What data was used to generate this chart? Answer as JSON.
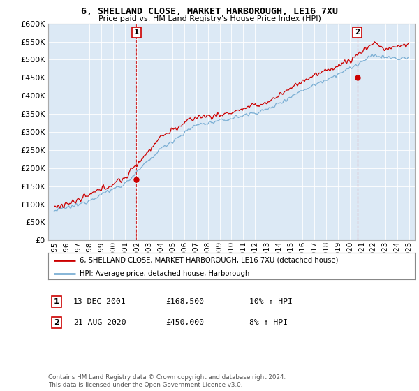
{
  "title": "6, SHELLAND CLOSE, MARKET HARBOROUGH, LE16 7XU",
  "subtitle": "Price paid vs. HM Land Registry's House Price Index (HPI)",
  "legend_line1": "6, SHELLAND CLOSE, MARKET HARBOROUGH, LE16 7XU (detached house)",
  "legend_line2": "HPI: Average price, detached house, Harborough",
  "annotation1_label": "1",
  "annotation1_date": "13-DEC-2001",
  "annotation1_price": "£168,500",
  "annotation1_hpi": "10% ↑ HPI",
  "annotation2_label": "2",
  "annotation2_date": "21-AUG-2020",
  "annotation2_price": "£450,000",
  "annotation2_hpi": "8% ↑ HPI",
  "footer": "Contains HM Land Registry data © Crown copyright and database right 2024.\nThis data is licensed under the Open Government Licence v3.0.",
  "red_color": "#cc0000",
  "blue_color": "#7bafd4",
  "plot_bg": "#dce9f5",
  "sale1_x": 2001.96,
  "sale1_y": 168500,
  "sale2_x": 2020.63,
  "sale2_y": 450000,
  "ylim": [
    0,
    600000
  ],
  "xlim": [
    1994.5,
    2025.5
  ],
  "yticks": [
    0,
    50000,
    100000,
    150000,
    200000,
    250000,
    300000,
    350000,
    400000,
    450000,
    500000,
    550000,
    600000
  ],
  "xticks": [
    1995,
    1996,
    1997,
    1998,
    1999,
    2000,
    2001,
    2002,
    2003,
    2004,
    2005,
    2006,
    2007,
    2008,
    2009,
    2010,
    2011,
    2012,
    2013,
    2014,
    2015,
    2016,
    2017,
    2018,
    2019,
    2020,
    2021,
    2022,
    2023,
    2024,
    2025
  ]
}
